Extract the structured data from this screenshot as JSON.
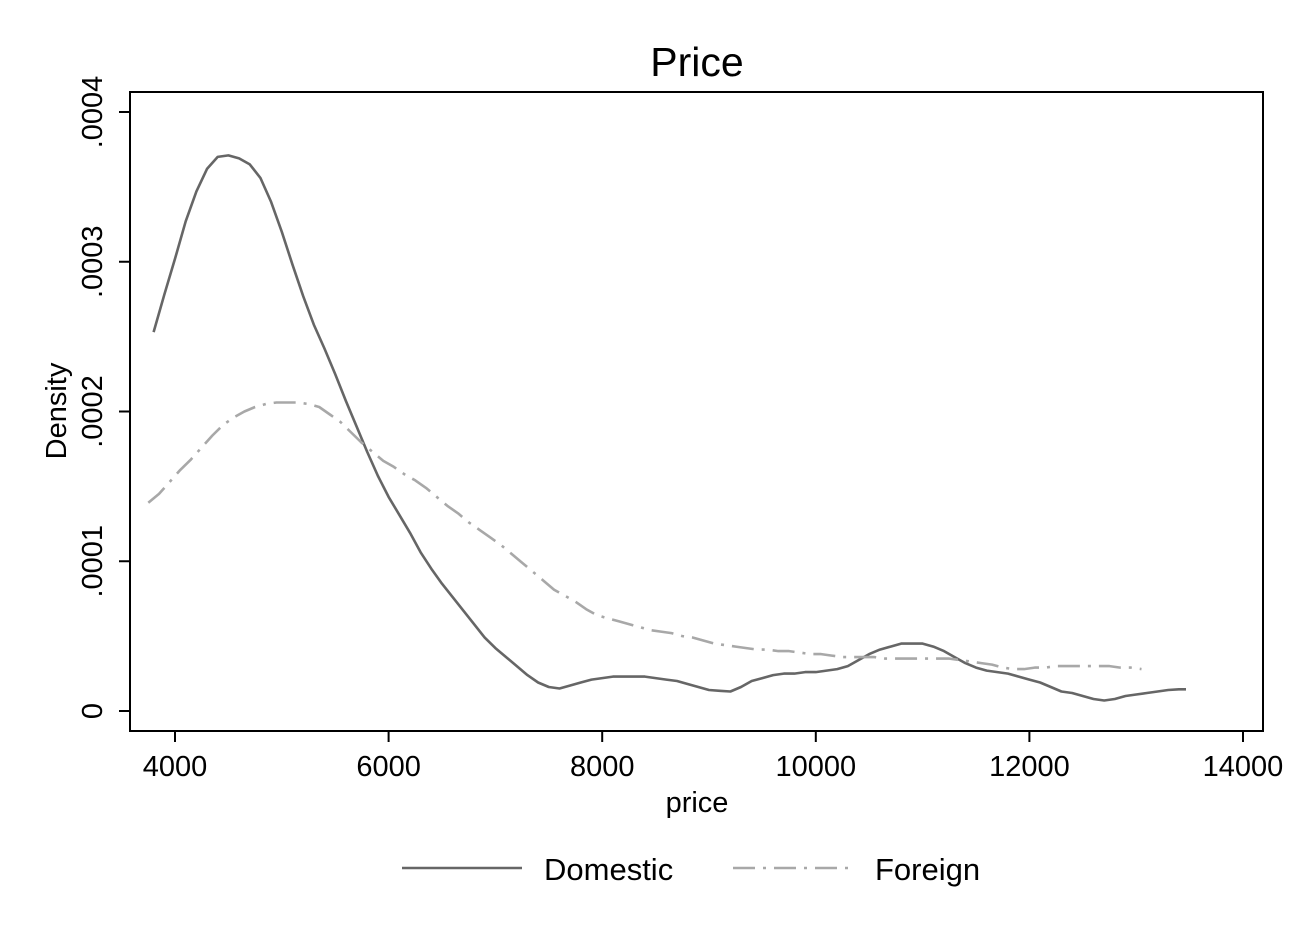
{
  "chart_data": {
    "type": "line",
    "title": "Price",
    "xlabel": "price",
    "ylabel": "Density",
    "xlim": [
      3800,
      14000
    ],
    "ylim": [
      0,
      0.0004
    ],
    "x_ticks": [
      4000,
      6000,
      8000,
      10000,
      12000,
      14000
    ],
    "x_tick_labels": [
      "4000",
      "6000",
      "8000",
      "10000",
      "12000",
      "14000"
    ],
    "y_ticks": [
      0,
      0.0001,
      0.0002,
      0.0003,
      0.0004
    ],
    "y_tick_labels": [
      "0",
      ".0001",
      ".0002",
      ".0003",
      ".0004"
    ],
    "grid": false,
    "legend_position": "bottom",
    "series": [
      {
        "name": "Domestic",
        "color": "#666666",
        "style": "solid",
        "x": [
          3800,
          3900,
          4000,
          4100,
          4200,
          4300,
          4400,
          4500,
          4600,
          4700,
          4800,
          4900,
          5000,
          5100,
          5200,
          5300,
          5400,
          5500,
          5600,
          5700,
          5800,
          5900,
          6000,
          6100,
          6200,
          6300,
          6400,
          6500,
          6600,
          6700,
          6800,
          6900,
          7000,
          7100,
          7200,
          7300,
          7400,
          7500,
          7600,
          7700,
          7800,
          7900,
          8000,
          8100,
          8200,
          8300,
          8400,
          8500,
          8600,
          8700,
          8800,
          8900,
          9000,
          9100,
          9200,
          9300,
          9400,
          9500,
          9600,
          9700,
          9800,
          9900,
          10000,
          10100,
          10200,
          10300,
          10400,
          10500,
          10600,
          10700,
          10800,
          10900,
          11000,
          11100,
          11200,
          11300,
          11400,
          11500,
          11600,
          11700,
          11800,
          11900,
          12000,
          12100,
          12200,
          12300,
          12400,
          12500,
          12600,
          12700,
          12800,
          12900,
          13000,
          13100,
          13200,
          13300,
          13400,
          13466
        ],
        "values": [
          0.000253,
          0.000278,
          0.000302,
          0.000327,
          0.000347,
          0.000362,
          0.00037,
          0.000371,
          0.000369,
          0.000365,
          0.000356,
          0.00034,
          0.00032,
          0.000298,
          0.000277,
          0.000258,
          0.000242,
          0.000225,
          0.000207,
          0.00019,
          0.000173,
          0.000157,
          0.000143,
          0.000131,
          0.000119,
          0.000106,
          9.5e-05,
          8.5e-05,
          7.6e-05,
          6.7e-05,
          5.8e-05,
          4.9e-05,
          4.2e-05,
          3.6e-05,
          3e-05,
          2.4e-05,
          1.9e-05,
          1.6e-05,
          1.5e-05,
          1.7e-05,
          1.9e-05,
          2.1e-05,
          2.2e-05,
          2.3e-05,
          2.3e-05,
          2.3e-05,
          2.3e-05,
          2.2e-05,
          2.1e-05,
          2e-05,
          1.8e-05,
          1.6e-05,
          1.4e-05,
          1.35e-05,
          1.3e-05,
          1.6e-05,
          2e-05,
          2.2e-05,
          2.4e-05,
          2.5e-05,
          2.5e-05,
          2.6e-05,
          2.6e-05,
          2.7e-05,
          2.8e-05,
          3e-05,
          3.4e-05,
          3.8e-05,
          4.1e-05,
          4.3e-05,
          4.5e-05,
          4.5e-05,
          4.5e-05,
          4.3e-05,
          4e-05,
          3.6e-05,
          3.2e-05,
          2.9e-05,
          2.7e-05,
          2.6e-05,
          2.5e-05,
          2.3e-05,
          2.1e-05,
          1.9e-05,
          1.6e-05,
          1.3e-05,
          1.2e-05,
          1e-05,
          8e-06,
          7e-06,
          8e-06,
          1e-05,
          1.1e-05,
          1.2e-05,
          1.3e-05,
          1.4e-05,
          1.45e-05,
          1.45e-05
        ]
      },
      {
        "name": "Foreign",
        "color": "#a8a8a8",
        "style": "dashdot",
        "x": [
          3750,
          3850,
          3950,
          4050,
          4150,
          4250,
          4350,
          4450,
          4550,
          4650,
          4750,
          4850,
          4950,
          5050,
          5150,
          5250,
          5350,
          5450,
          5550,
          5650,
          5750,
          5850,
          5950,
          6050,
          6150,
          6250,
          6350,
          6450,
          6550,
          6650,
          6750,
          6850,
          6950,
          7050,
          7150,
          7250,
          7350,
          7450,
          7550,
          7650,
          7750,
          7850,
          7950,
          8050,
          8150,
          8250,
          8350,
          8450,
          8550,
          8650,
          8750,
          8850,
          8950,
          9050,
          9150,
          9250,
          9350,
          9450,
          9550,
          9650,
          9750,
          9850,
          9950,
          10050,
          10150,
          10250,
          10350,
          10450,
          10550,
          10650,
          10750,
          10850,
          10950,
          11050,
          11150,
          11250,
          11350,
          11450,
          11550,
          11650,
          11750,
          11850,
          11950,
          12050,
          12150,
          12250,
          12350,
          12450,
          12550,
          12650,
          12750,
          12850,
          12950,
          13050
        ],
        "values": [
          0.000139,
          0.000145,
          0.000153,
          0.000161,
          0.000168,
          0.000176,
          0.000184,
          0.000191,
          0.000196,
          0.0002,
          0.000203,
          0.000205,
          0.000206,
          0.000206,
          0.000206,
          0.000205,
          0.000203,
          0.000198,
          0.000193,
          0.000186,
          0.000179,
          0.000173,
          0.000167,
          0.000163,
          0.000158,
          0.000154,
          0.000149,
          0.000143,
          0.000137,
          0.000132,
          0.000126,
          0.000121,
          0.000116,
          0.000111,
          0.000105,
          9.9e-05,
          9.3e-05,
          8.7e-05,
          8.1e-05,
          7.7e-05,
          7.3e-05,
          6.8e-05,
          6.4e-05,
          6.2e-05,
          6e-05,
          5.8e-05,
          5.6e-05,
          5.4e-05,
          5.3e-05,
          5.2e-05,
          5e-05,
          4.9e-05,
          4.7e-05,
          4.5e-05,
          4.4e-05,
          4.3e-05,
          4.2e-05,
          4.1e-05,
          4.1e-05,
          4e-05,
          4e-05,
          3.9e-05,
          3.8e-05,
          3.8e-05,
          3.7e-05,
          3.6e-05,
          3.6e-05,
          3.6e-05,
          3.6e-05,
          3.5e-05,
          3.5e-05,
          3.5e-05,
          3.5e-05,
          3.5e-05,
          3.5e-05,
          3.5e-05,
          3.4e-05,
          3.3e-05,
          3.2e-05,
          3.1e-05,
          2.9e-05,
          2.8e-05,
          2.8e-05,
          2.9e-05,
          2.9e-05,
          3e-05,
          3e-05,
          3e-05,
          3e-05,
          3e-05,
          3e-05,
          2.9e-05,
          2.9e-05,
          2.8e-05
        ]
      }
    ]
  }
}
